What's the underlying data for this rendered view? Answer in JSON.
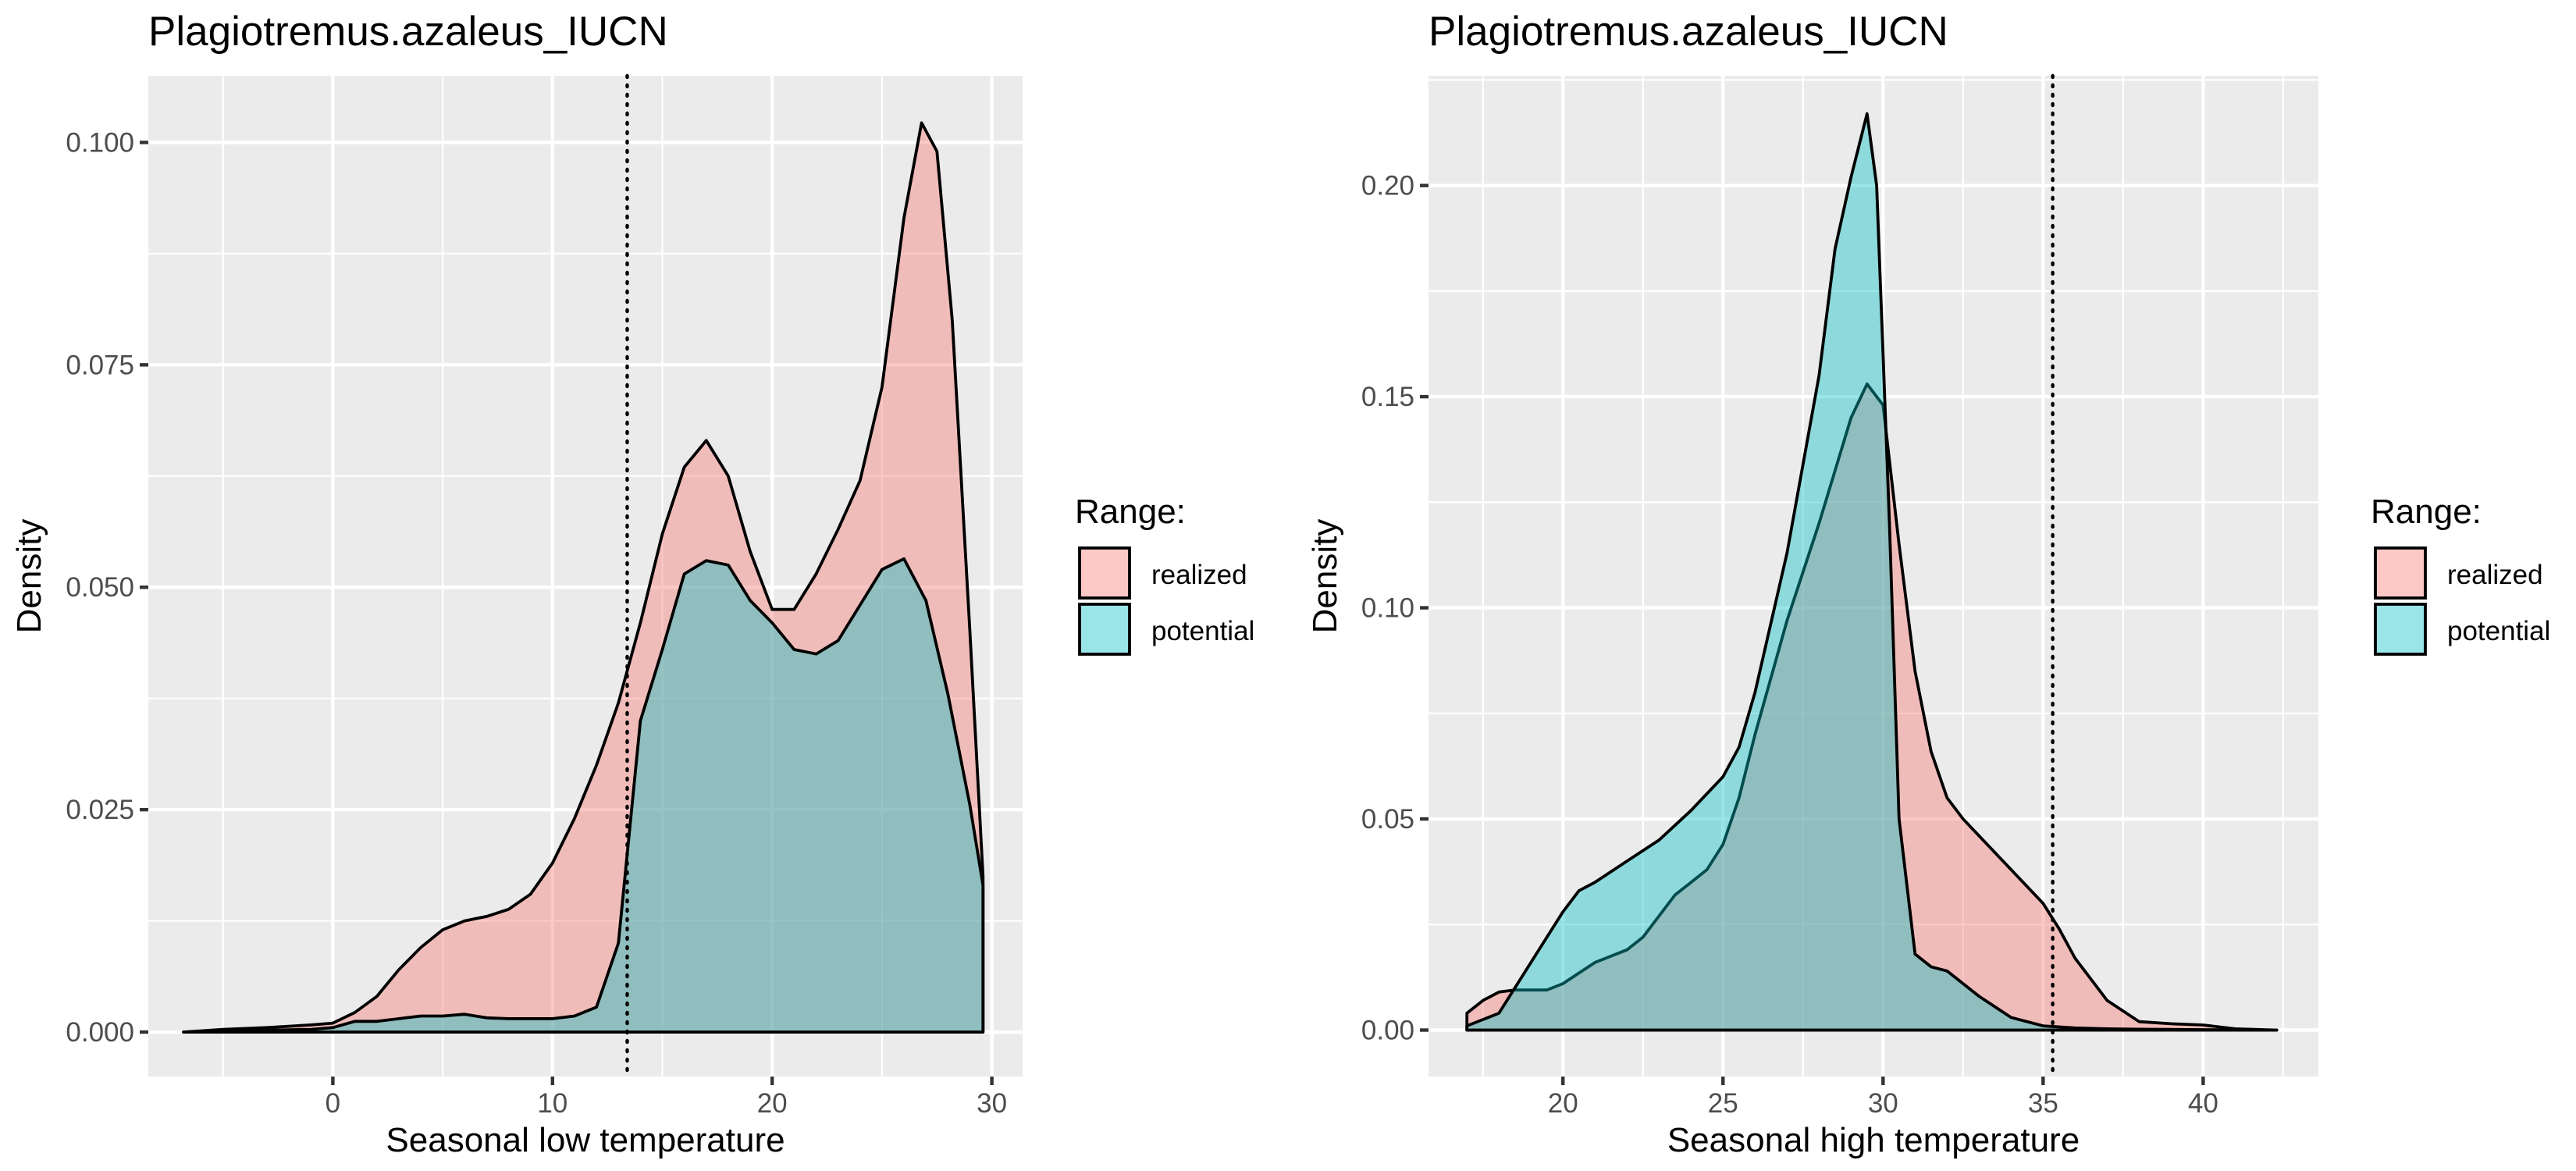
{
  "colors": {
    "realized": "#F8766D",
    "potential": "#00BFC4",
    "fill_alpha": 0.4
  },
  "legend": {
    "title": "Range:",
    "items": [
      "realized",
      "potential"
    ]
  },
  "chart_data": [
    {
      "type": "area",
      "title": "Plagiotremus.azaleus_IUCN",
      "xlabel": "Seasonal low temperature",
      "ylabel": "Density",
      "xlim": [
        -8.4,
        31.4
      ],
      "ylim": [
        -0.005,
        0.1075
      ],
      "x_ticks": [
        0,
        10,
        20,
        30
      ],
      "x_tick_labels": [
        "0",
        "10",
        "20",
        "30"
      ],
      "y_ticks": [
        0,
        0.025,
        0.05,
        0.075,
        0.1
      ],
      "y_tick_labels": [
        "0.000",
        "0.025",
        "0.050",
        "0.075",
        "0.100"
      ],
      "vline": 13.4,
      "series": [
        {
          "name": "realized",
          "points": [
            [
              -6.8,
              0
            ],
            [
              -5,
              0.0003
            ],
            [
              -3,
              0.0005
            ],
            [
              -1,
              0.0008
            ],
            [
              0,
              0.001
            ],
            [
              1,
              0.0022
            ],
            [
              2,
              0.004
            ],
            [
              3,
              0.007
            ],
            [
              4,
              0.0095
            ],
            [
              5,
              0.0115
            ],
            [
              6,
              0.0125
            ],
            [
              7,
              0.013
            ],
            [
              8,
              0.0138
            ],
            [
              9,
              0.0155
            ],
            [
              10,
              0.019
            ],
            [
              11,
              0.024
            ],
            [
              12,
              0.03
            ],
            [
              13,
              0.037
            ],
            [
              14,
              0.046
            ],
            [
              15,
              0.056
            ],
            [
              16,
              0.0635
            ],
            [
              17,
              0.0665
            ],
            [
              18,
              0.0625
            ],
            [
              19,
              0.054
            ],
            [
              20,
              0.0475
            ],
            [
              21,
              0.0475
            ],
            [
              22,
              0.0515
            ],
            [
              23,
              0.0565
            ],
            [
              24,
              0.062
            ],
            [
              25,
              0.0725
            ],
            [
              26,
              0.0915
            ],
            [
              26.8,
              0.1022
            ],
            [
              27.5,
              0.099
            ],
            [
              28.2,
              0.08
            ],
            [
              29,
              0.045
            ],
            [
              29.6,
              0.0175
            ],
            [
              29.6,
              0
            ]
          ]
        },
        {
          "name": "potential",
          "points": [
            [
              -6.8,
              0
            ],
            [
              -3,
              0.0002
            ],
            [
              -1,
              0.0003
            ],
            [
              0,
              0.0005
            ],
            [
              1,
              0.0012
            ],
            [
              2,
              0.0012
            ],
            [
              3,
              0.0015
            ],
            [
              4,
              0.0018
            ],
            [
              5,
              0.0018
            ],
            [
              6,
              0.002
            ],
            [
              7,
              0.0016
            ],
            [
              8,
              0.0015
            ],
            [
              9,
              0.0015
            ],
            [
              10,
              0.0015
            ],
            [
              11,
              0.0018
            ],
            [
              12,
              0.0028
            ],
            [
              13,
              0.01
            ],
            [
              14,
              0.035
            ],
            [
              15,
              0.043
            ],
            [
              16,
              0.0515
            ],
            [
              17,
              0.053
            ],
            [
              18,
              0.0525
            ],
            [
              19,
              0.0485
            ],
            [
              20,
              0.046
            ],
            [
              21,
              0.043
            ],
            [
              22,
              0.0425
            ],
            [
              23,
              0.044
            ],
            [
              24,
              0.048
            ],
            [
              25,
              0.052
            ],
            [
              26,
              0.0532
            ],
            [
              27,
              0.0485
            ],
            [
              28,
              0.038
            ],
            [
              29,
              0.0255
            ],
            [
              29.6,
              0.0165
            ],
            [
              29.6,
              0
            ]
          ]
        }
      ]
    },
    {
      "type": "area",
      "title": "Plagiotremus.azaleus_IUCN",
      "xlabel": "Seasonal high temperature",
      "ylabel": "Density",
      "xlim": [
        15.8,
        43.6
      ],
      "ylim": [
        -0.011,
        0.226
      ],
      "x_ticks": [
        20,
        25,
        30,
        35,
        40
      ],
      "x_tick_labels": [
        "20",
        "25",
        "30",
        "35",
        "40"
      ],
      "y_ticks": [
        0,
        0.05,
        0.1,
        0.15,
        0.2
      ],
      "y_tick_labels": [
        "0.00",
        "0.05",
        "0.10",
        "0.15",
        "0.20"
      ],
      "vline": 35.3,
      "series": [
        {
          "name": "realized",
          "points": [
            [
              17,
              0
            ],
            [
              17,
              0.004
            ],
            [
              17.5,
              0.007
            ],
            [
              18,
              0.009
            ],
            [
              18.5,
              0.0095
            ],
            [
              19,
              0.0095
            ],
            [
              19.5,
              0.0095
            ],
            [
              20,
              0.011
            ],
            [
              21,
              0.016
            ],
            [
              22,
              0.019
            ],
            [
              22.5,
              0.022
            ],
            [
              23,
              0.027
            ],
            [
              23.5,
              0.032
            ],
            [
              24,
              0.035
            ],
            [
              24.5,
              0.038
            ],
            [
              25,
              0.044
            ],
            [
              25.5,
              0.055
            ],
            [
              26,
              0.07
            ],
            [
              27,
              0.097
            ],
            [
              28,
              0.12
            ],
            [
              29,
              0.145
            ],
            [
              29.5,
              0.153
            ],
            [
              30,
              0.148
            ],
            [
              30.5,
              0.115
            ],
            [
              31,
              0.085
            ],
            [
              31.5,
              0.066
            ],
            [
              32,
              0.055
            ],
            [
              32.5,
              0.05
            ],
            [
              33,
              0.046
            ],
            [
              34,
              0.038
            ],
            [
              35,
              0.03
            ],
            [
              35.5,
              0.024
            ],
            [
              36,
              0.017
            ],
            [
              37,
              0.007
            ],
            [
              38,
              0.002
            ],
            [
              39,
              0.0015
            ],
            [
              40,
              0.0012
            ],
            [
              41,
              0.0003
            ],
            [
              42.3,
              0
            ],
            [
              42.3,
              0
            ]
          ]
        },
        {
          "name": "potential",
          "points": [
            [
              17,
              0
            ],
            [
              17,
              0.001
            ],
            [
              18,
              0.004
            ],
            [
              19,
              0.016
            ],
            [
              20,
              0.028
            ],
            [
              20.5,
              0.033
            ],
            [
              21,
              0.035
            ],
            [
              22,
              0.04
            ],
            [
              23,
              0.045
            ],
            [
              24,
              0.052
            ],
            [
              25,
              0.06
            ],
            [
              25.5,
              0.067
            ],
            [
              26,
              0.08
            ],
            [
              27,
              0.113
            ],
            [
              28,
              0.155
            ],
            [
              28.5,
              0.185
            ],
            [
              29,
              0.202
            ],
            [
              29.5,
              0.217
            ],
            [
              29.8,
              0.2
            ],
            [
              30.2,
              0.12
            ],
            [
              30.5,
              0.05
            ],
            [
              31,
              0.018
            ],
            [
              31.5,
              0.015
            ],
            [
              32,
              0.014
            ],
            [
              33,
              0.008
            ],
            [
              34,
              0.003
            ],
            [
              35,
              0.001
            ],
            [
              36,
              0.0005
            ],
            [
              37,
              0.0003
            ],
            [
              38,
              0.0002
            ],
            [
              40,
              0.0001
            ],
            [
              42.3,
              0
            ],
            [
              42.3,
              0
            ]
          ]
        }
      ]
    }
  ]
}
